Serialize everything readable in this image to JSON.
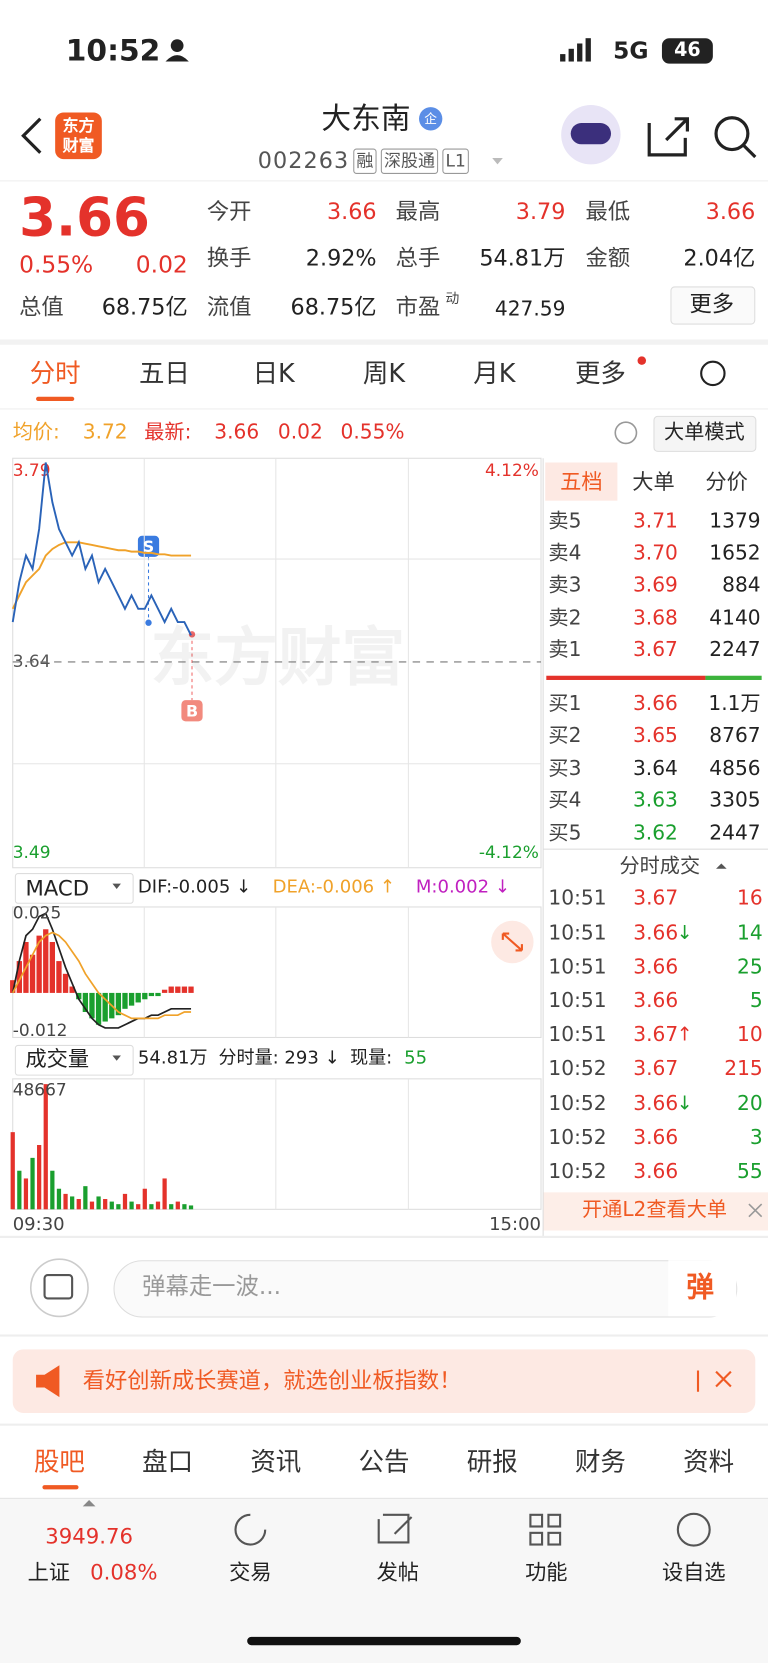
{
  "status_bar": {
    "time": "10:52",
    "network": "5G",
    "battery": "46"
  },
  "header": {
    "logo": [
      "东方",
      "财富"
    ],
    "title": "大东南",
    "badge": "企",
    "code": "002263",
    "tags": [
      "融",
      "深股通",
      "L1"
    ]
  },
  "quote": {
    "price": "3.66",
    "change_pct": "0.55%",
    "change": "0.02",
    "stats": [
      {
        "label": "今开",
        "value": "3.66"
      },
      {
        "label": "最高",
        "value": "3.79"
      },
      {
        "label": "最低",
        "value": "3.66"
      },
      {
        "label": "换手",
        "value": "2.92%"
      },
      {
        "label": "总手",
        "value": "54.81万"
      },
      {
        "label": "金额",
        "value": "2.04亿"
      },
      {
        "label": "总值",
        "value": "68.75亿"
      },
      {
        "label": "流值",
        "value": "68.75亿"
      },
      {
        "label": "市盈",
        "sup": "动",
        "value": "427.59"
      }
    ],
    "more": "更多"
  },
  "chart_tabs": [
    "分时",
    "五日",
    "日K",
    "周K",
    "月K",
    "更多"
  ],
  "info_bar": {
    "avg_label": "均价:",
    "avg": "3.72",
    "last_label": "最新:",
    "last": "3.66",
    "change": "0.02",
    "change_pct": "0.55%",
    "mode_button": "大单模式"
  },
  "watermark": "东方财富",
  "markers": {
    "sell": "S",
    "buy": "B"
  },
  "order_book": {
    "tabs": [
      "五档",
      "大单",
      "分价"
    ],
    "asks": [
      {
        "label": "卖5",
        "price": "3.71",
        "volume": "1379"
      },
      {
        "label": "卖4",
        "price": "3.70",
        "volume": "1652"
      },
      {
        "label": "卖3",
        "price": "3.69",
        "volume": "884"
      },
      {
        "label": "卖2",
        "price": "3.68",
        "volume": "4140"
      },
      {
        "label": "卖1",
        "price": "3.67",
        "volume": "2247"
      }
    ],
    "bids": [
      {
        "label": "买1",
        "price": "3.66",
        "volume": "1.1万"
      },
      {
        "label": "买2",
        "price": "3.65",
        "volume": "8767"
      },
      {
        "label": "买3",
        "price": "3.64",
        "volume": "4856"
      },
      {
        "label": "买4",
        "price": "3.63",
        "volume": "3305"
      },
      {
        "label": "买5",
        "price": "3.62",
        "volume": "2447"
      }
    ]
  },
  "trades": {
    "title": "分时成交",
    "rows": [
      {
        "time": "10:51",
        "price": "3.67",
        "volume": "16",
        "volume_color": "#e4322b"
      },
      {
        "time": "10:51",
        "price": "3.66",
        "arrow": "↓",
        "volume": "14",
        "volume_color": "#1a9f2e"
      },
      {
        "time": "10:51",
        "price": "3.66",
        "volume": "25",
        "volume_color": "#1a9f2e"
      },
      {
        "time": "10:51",
        "price": "3.66",
        "volume": "5",
        "volume_color": "#1a9f2e"
      },
      {
        "time": "10:51",
        "price": "3.67",
        "arrow": "↑",
        "volume": "10",
        "volume_color": "#e4322b"
      },
      {
        "time": "10:52",
        "price": "3.67",
        "volume": "215",
        "volume_color": "#e4322b"
      },
      {
        "time": "10:52",
        "price": "3.66",
        "arrow": "↓",
        "volume": "20",
        "volume_color": "#1a9f2e"
      },
      {
        "time": "10:52",
        "price": "3.66",
        "volume": "3",
        "volume_color": "#1a9f2e"
      },
      {
        "time": "10:52",
        "price": "3.66",
        "volume": "55",
        "volume_color": "#1a9f2e"
      }
    ]
  },
  "l2_banner": "开通L2查看大单",
  "macd_bar": {
    "selector": "MACD",
    "dif": "DIF:-0.005 ↓",
    "dea": "DEA:-0.006 ↑",
    "m": "M:0.002 ↓"
  },
  "volume_bar": {
    "selector": "成交量",
    "total": "54.81万",
    "minute_volume": "分时量: 293 ↓",
    "current_label": "现量:",
    "current": "55"
  },
  "danmaku": {
    "placeholder": "弹幕走一波...",
    "button": "弹"
  },
  "ad": "看好创新成长赛道，就选创业板指数！",
  "bottom_tabs": [
    "股吧",
    "盘口",
    "资讯",
    "公告",
    "研报",
    "财务",
    "资料"
  ],
  "bottom_nav": {
    "index_value": "3949.76",
    "index_name": "上证",
    "index_change": "0.08%",
    "items": [
      "交易",
      "发帖",
      "功能",
      "设自选"
    ]
  },
  "chart_data": [
    {
      "type": "line",
      "xlim": [
        0,
        240
      ],
      "x": [
        0,
        3,
        6,
        9,
        12,
        15,
        18,
        21,
        24,
        27,
        30,
        33,
        36,
        39,
        42,
        45,
        48,
        51,
        54,
        57,
        60,
        63,
        66,
        69,
        72,
        75,
        78,
        81
      ],
      "series": [
        {
          "color": "#2a63b8",
          "values": [
            3.67,
            3.7,
            3.72,
            3.71,
            3.74,
            3.79,
            3.76,
            3.74,
            3.73,
            3.72,
            3.73,
            3.71,
            3.72,
            3.7,
            3.71,
            3.7,
            3.69,
            3.68,
            3.69,
            3.68,
            3.68,
            3.69,
            3.68,
            3.67,
            3.68,
            3.67,
            3.67,
            3.66
          ]
        },
        {
          "color": "#f0a22a",
          "values": [
            3.68,
            3.69,
            3.7,
            3.705,
            3.71,
            3.72,
            3.725,
            3.728,
            3.73,
            3.73,
            3.73,
            3.729,
            3.728,
            3.727,
            3.726,
            3.725,
            3.724,
            3.724,
            3.723,
            3.723,
            3.722,
            3.722,
            3.721,
            3.721,
            3.72,
            3.72,
            3.72,
            3.72
          ]
        }
      ],
      "ylim": [
        3.49,
        3.79
      ],
      "yticks": [
        3.79,
        3.64,
        3.49
      ],
      "y2lim": [
        -4.12,
        4.12
      ],
      "y2ticks": [
        {
          "value": 4.12,
          "label": "4.12%"
        },
        {
          "value": -4.12,
          "label": "-4.12%"
        }
      ],
      "grid": true
    },
    {
      "type": "macd",
      "xlim": [
        0,
        240
      ],
      "x": [
        0,
        3,
        6,
        9,
        12,
        15,
        18,
        21,
        24,
        27,
        30,
        33,
        36,
        39,
        42,
        45,
        48,
        51,
        54,
        57,
        60,
        63,
        66,
        69,
        72,
        75,
        78,
        81
      ],
      "hist": [
        0.004,
        0.01,
        0.016,
        0.012,
        0.018,
        0.02,
        0.016,
        0.01,
        0.006,
        0.002,
        -0.002,
        -0.006,
        -0.008,
        -0.01,
        -0.009,
        -0.008,
        -0.007,
        -0.005,
        -0.004,
        -0.003,
        -0.002,
        -0.001,
        -0.001,
        0.001,
        0.002,
        0.002,
        0.002,
        0.002
      ],
      "up_color": "#e4322b",
      "down_color": "#1a9f2e",
      "series": [
        {
          "color": "#222222",
          "values": [
            0.0,
            0.01,
            0.018,
            0.02,
            0.024,
            0.025,
            0.02,
            0.014,
            0.008,
            0.003,
            -0.002,
            -0.005,
            -0.008,
            -0.01,
            -0.011,
            -0.011,
            -0.011,
            -0.01,
            -0.009,
            -0.008,
            -0.008,
            -0.007,
            -0.007,
            -0.006,
            -0.005,
            -0.005,
            -0.005,
            -0.005
          ]
        },
        {
          "color": "#f0a22a",
          "values": [
            0.0,
            0.004,
            0.008,
            0.012,
            0.016,
            0.018,
            0.019,
            0.018,
            0.016,
            0.013,
            0.01,
            0.006,
            0.003,
            0.0,
            -0.002,
            -0.004,
            -0.006,
            -0.007,
            -0.008,
            -0.008,
            -0.008,
            -0.008,
            -0.008,
            -0.007,
            -0.007,
            -0.007,
            -0.006,
            -0.006
          ]
        }
      ],
      "ylim": [
        -0.014,
        0.027
      ],
      "yticks": [
        0.025,
        -0.012
      ]
    },
    {
      "type": "bar",
      "xlim": [
        0,
        240
      ],
      "x": [
        0,
        3,
        6,
        9,
        12,
        15,
        18,
        21,
        24,
        27,
        30,
        33,
        36,
        39,
        42,
        45,
        48,
        51,
        54,
        57,
        60,
        63,
        66,
        69,
        72,
        75,
        78,
        81
      ],
      "values": [
        30000,
        15000,
        12000,
        20000,
        25000,
        48667,
        15000,
        8000,
        6000,
        5000,
        4000,
        9000,
        3000,
        5000,
        4000,
        3000,
        2000,
        6000,
        3000,
        2000,
        8000,
        2000,
        3000,
        12000,
        2000,
        3000,
        2000,
        1500
      ],
      "colors": [
        "#e4322b",
        "#1a9f2e",
        "#e4322b",
        "#1a9f2e",
        "#e4322b",
        "#e4322b",
        "#1a9f2e",
        "#1a9f2e",
        "#e4322b",
        "#1a9f2e",
        "#e4322b",
        "#1a9f2e",
        "#e4322b",
        "#1a9f2e",
        "#e4322b",
        "#1a9f2e",
        "#1a9f2e",
        "#e4322b",
        "#1a9f2e",
        "#e4322b",
        "#e4322b",
        "#1a9f2e",
        "#e4322b",
        "#e4322b",
        "#1a9f2e",
        "#e4322b",
        "#1a9f2e",
        "#1a9f2e"
      ],
      "ylim": [
        0,
        48667
      ],
      "yticks": [
        48667
      ],
      "xticks": [
        {
          "value": 0,
          "label": "09:30"
        },
        {
          "value": 240,
          "label": "15:00"
        }
      ]
    }
  ]
}
